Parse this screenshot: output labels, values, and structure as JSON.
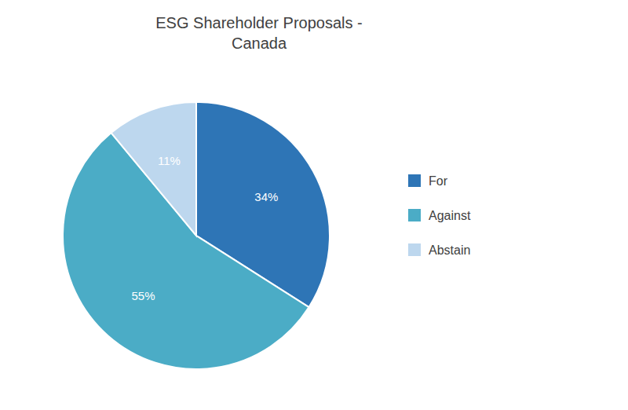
{
  "chart_data": {
    "type": "pie",
    "title": "ESG Shareholder Proposals -\nCanada",
    "categories": [
      "For",
      "Against",
      "Abstain"
    ],
    "values": [
      34,
      55,
      11
    ],
    "value_labels": [
      "34%",
      "55%",
      "11%"
    ],
    "colors": [
      "#2E75B6",
      "#4BACC6",
      "#BDD7EE"
    ],
    "data_labels": true,
    "legend": "right"
  }
}
